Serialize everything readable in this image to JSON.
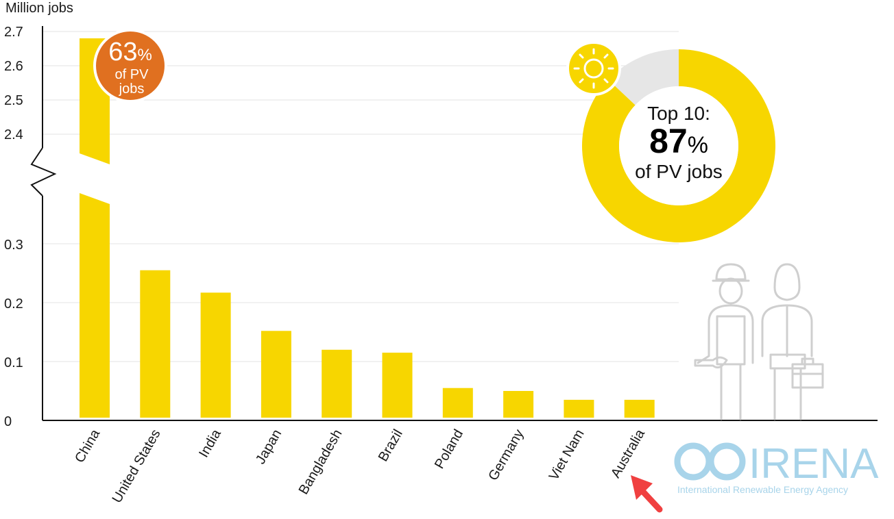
{
  "chart_data": {
    "type": "bar",
    "ylabel": "Million jobs",
    "categories": [
      "China",
      "United States",
      "India",
      "Japan",
      "Bangladesh",
      "Brazil",
      "Poland",
      "Germany",
      "Viet Nam",
      "Australia"
    ],
    "values": [
      2.68,
      0.255,
      0.217,
      0.152,
      0.12,
      0.115,
      0.055,
      0.05,
      0.035,
      0.035
    ],
    "y_ticks_lower": [
      "0",
      "0.1",
      "0.2",
      "0.3"
    ],
    "y_ticks_upper": [
      "2.4",
      "2.5",
      "2.6",
      "2.7"
    ],
    "axis_break": {
      "lower_range": [
        0,
        0.3
      ],
      "upper_range": [
        2.4,
        2.7
      ]
    },
    "grid": true,
    "bar_color": "#f7d600"
  },
  "china_badge": {
    "value": "63",
    "percent": "%",
    "line1": "of PV",
    "line2": "jobs",
    "color": "#e07020"
  },
  "donut": {
    "share": 0.87,
    "headline": "Top 10:",
    "value": "87",
    "percent": "%",
    "caption": "of PV jobs",
    "fill_color": "#f7d600",
    "rest_color": "#e6e6e6",
    "icon": "sun-icon"
  },
  "decorations": {
    "icon": "workers-icon"
  },
  "logo": {
    "name": "IRENA",
    "tagline": "International Renewable Energy Agency",
    "color": "#a8d4ea"
  },
  "annotation": {
    "icon": "red-arrow-icon",
    "color": "#f04040"
  }
}
